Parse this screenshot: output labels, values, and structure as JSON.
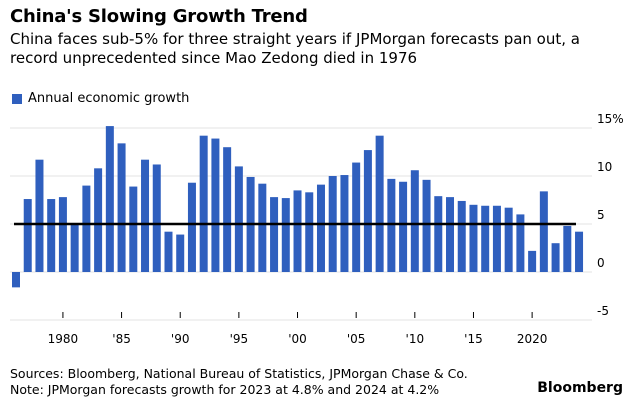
{
  "header": {
    "title": "China's Slowing Growth Trend",
    "subtitle": "China faces sub-5% for three straight years if JPMorgan forecasts pan out, a record unprecedented since Mao Zedong died in 1976"
  },
  "footer": {
    "sources": "Sources: Bloomberg, National Bureau of Statistics, JPMorgan Chase & Co.",
    "note": "Note: JPMorgan forecasts growth for 2023 at 4.8% and 2024 at 4.2%",
    "brand": "Bloomberg"
  },
  "colors": {
    "bar": "#2f5fbe",
    "reference_line": "#000000"
  },
  "chart_data": {
    "type": "bar",
    "legend": [
      "Annual economic growth"
    ],
    "legend_position": "top-left",
    "x_tick_labels": [
      "1980",
      "'85",
      "'90",
      "'95",
      "'00",
      "'05",
      "'10",
      "'15",
      "2020"
    ],
    "x_tick_years": [
      1980,
      1985,
      1990,
      1995,
      2000,
      2005,
      2010,
      2015,
      2020
    ],
    "y_tick_labels": [
      "15%",
      "10",
      "5",
      "0",
      "-5"
    ],
    "y_tick_values": [
      15,
      10,
      5,
      0,
      -5
    ],
    "ylim": [
      -6,
      16
    ],
    "y_axis_side": "right",
    "grid": true,
    "reference_line": 5,
    "series": [
      {
        "name": "Annual economic growth",
        "years": [
          1976,
          1977,
          1978,
          1979,
          1980,
          1981,
          1982,
          1983,
          1984,
          1985,
          1986,
          1987,
          1988,
          1989,
          1990,
          1991,
          1992,
          1993,
          1994,
          1995,
          1996,
          1997,
          1998,
          1999,
          2000,
          2001,
          2002,
          2003,
          2004,
          2005,
          2006,
          2007,
          2008,
          2009,
          2010,
          2011,
          2012,
          2013,
          2014,
          2015,
          2016,
          2017,
          2018,
          2019,
          2020,
          2021,
          2022,
          2023,
          2024
        ],
        "values": [
          -1.6,
          7.6,
          11.7,
          7.6,
          7.8,
          5.1,
          9.0,
          10.8,
          15.2,
          13.4,
          8.9,
          11.7,
          11.2,
          4.2,
          3.9,
          9.3,
          14.2,
          13.9,
          13.0,
          11.0,
          9.9,
          9.2,
          7.8,
          7.7,
          8.5,
          8.3,
          9.1,
          10.0,
          10.1,
          11.4,
          12.7,
          14.2,
          9.7,
          9.4,
          10.6,
          9.6,
          7.9,
          7.8,
          7.4,
          7.0,
          6.9,
          6.9,
          6.7,
          6.0,
          2.2,
          8.4,
          3.0,
          4.8,
          4.2
        ]
      }
    ]
  }
}
